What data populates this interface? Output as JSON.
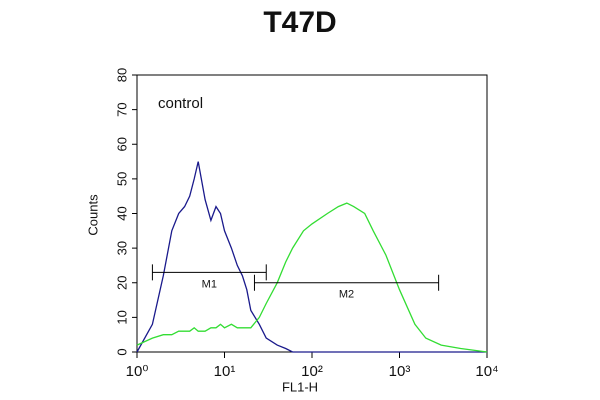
{
  "chart_data": {
    "type": "line",
    "title": "T47D",
    "x_label": "FL1-H",
    "y_label": "Counts",
    "annotation": "control",
    "xscale": "log",
    "xlim": [
      1,
      10000
    ],
    "ylim": [
      0,
      80
    ],
    "xticks": [
      {
        "value": 1,
        "label": "10⁰"
      },
      {
        "value": 10,
        "label": "10¹"
      },
      {
        "value": 100,
        "label": "10²"
      },
      {
        "value": 1000,
        "label": "10³"
      },
      {
        "value": 10000,
        "label": "10⁴"
      }
    ],
    "yticks": [
      0,
      10,
      20,
      30,
      40,
      50,
      60,
      70,
      80
    ],
    "x": [
      1,
      1.5,
      2,
      2.5,
      3,
      3.5,
      4,
      4.5,
      5,
      6,
      7,
      8,
      9,
      10,
      12,
      14,
      16,
      18,
      20,
      25,
      30,
      40,
      50,
      60,
      80,
      100,
      150,
      200,
      250,
      300,
      400,
      500,
      700,
      1000,
      1500,
      2000,
      3000,
      5000,
      10000
    ],
    "series": [
      {
        "name": "control",
        "color": "#1a1a8c",
        "values": [
          0,
          8,
          22,
          35,
          40,
          42,
          45,
          50,
          55,
          44,
          38,
          42,
          40,
          35,
          30,
          25,
          22,
          18,
          12,
          8,
          4,
          2,
          1,
          0,
          0,
          0,
          0,
          0,
          0,
          0,
          0,
          0,
          0,
          0,
          0,
          0,
          0,
          0,
          0
        ]
      },
      {
        "name": "T47D",
        "color": "#33dd33",
        "values": [
          2,
          4,
          5,
          5,
          6,
          6,
          6,
          7,
          6,
          6,
          7,
          7,
          8,
          7,
          8,
          7,
          7,
          7,
          7,
          10,
          14,
          20,
          26,
          30,
          35,
          37,
          40,
          42,
          43,
          42,
          40,
          35,
          28,
          18,
          8,
          4,
          2,
          1,
          0
        ]
      }
    ],
    "markers": [
      {
        "label": "M1",
        "range": [
          1.5,
          30
        ],
        "y": 23
      },
      {
        "label": "M2",
        "range": [
          22,
          2800
        ],
        "y": 20
      }
    ]
  }
}
